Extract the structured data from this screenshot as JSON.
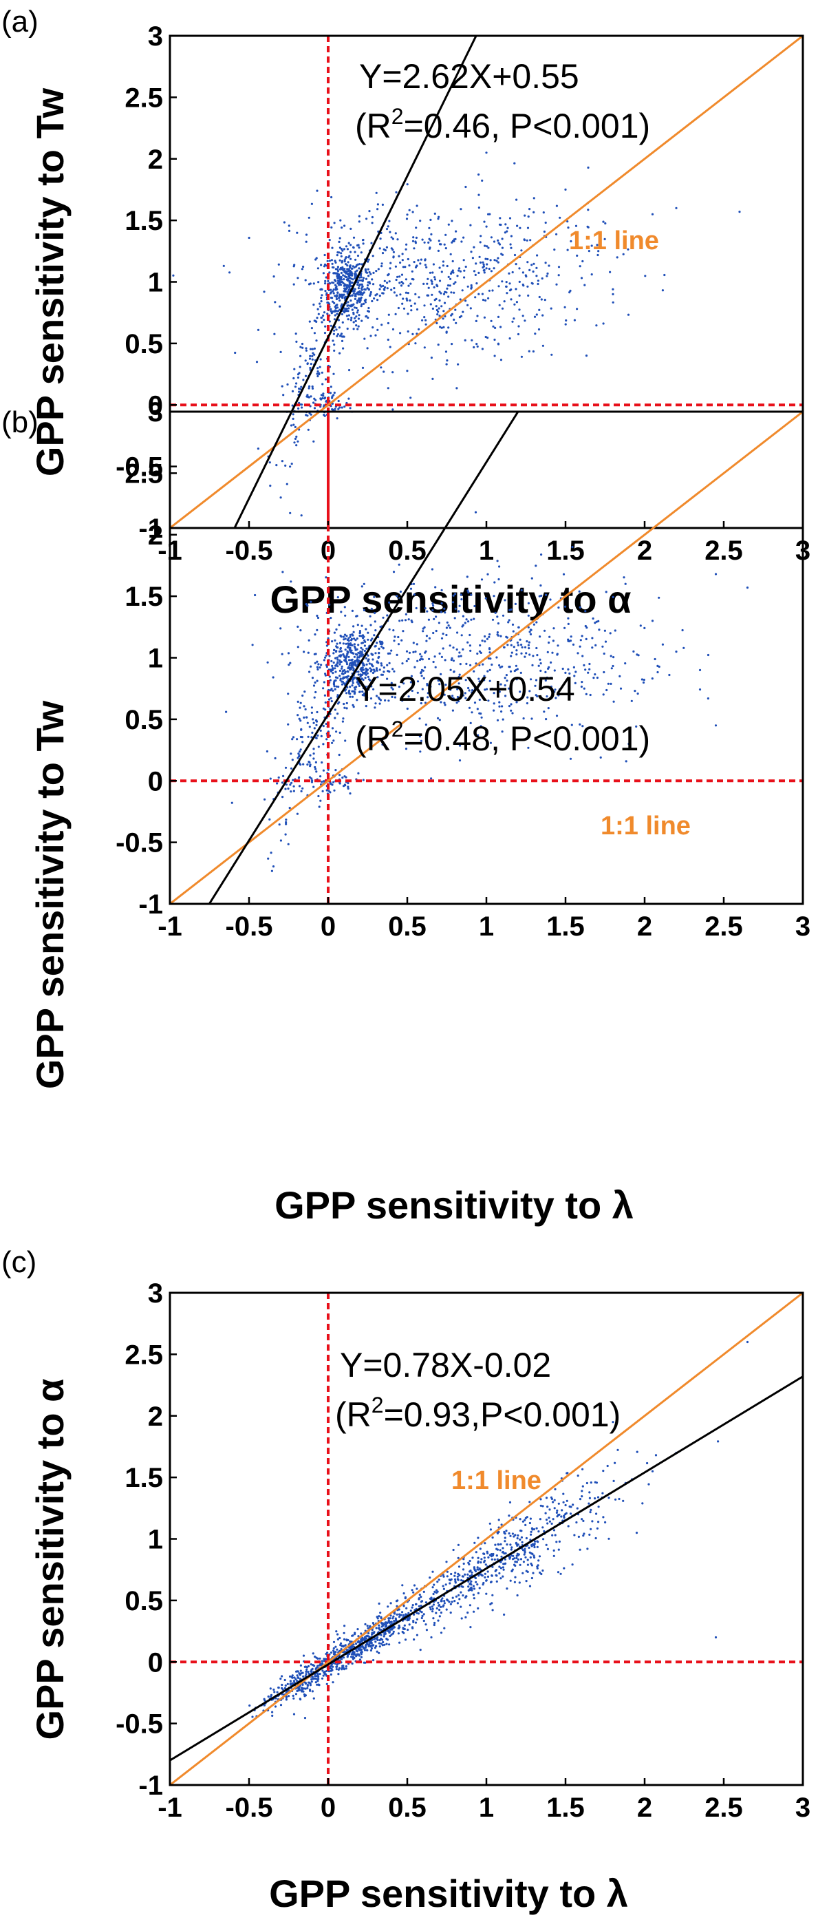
{
  "colors": {
    "points": "#1f4fb8",
    "fit_line": "#000000",
    "one_to_one": "#f08a2c",
    "zero_lines": "#e8101a",
    "axes": "#000000"
  },
  "chart_data": [
    {
      "type": "scatter",
      "panel": "(a)",
      "xlabel": "GPP sensitivity to α",
      "ylabel": "GPP sensitivity to Tw",
      "xlim": [
        -1,
        3
      ],
      "ylim": [
        -1,
        3
      ],
      "xticks": [
        "-1",
        "-0.5",
        "0",
        "0.5",
        "1",
        "1.5",
        "2",
        "2.5",
        "3"
      ],
      "yticks": [
        "-1",
        "-0.5",
        "0",
        "0.5",
        "1",
        "1.5",
        "2",
        "2.5",
        "3"
      ],
      "fit": {
        "slope": 2.62,
        "intercept": 0.55
      },
      "equation": "Y=2.62X+0.55",
      "stats_prefix": "(R",
      "stats_sup": "2",
      "stats_suffix": "=0.46, P<0.001)",
      "one_to_one_label": "1:1 line",
      "zero_lines": true,
      "clusters": [
        {
          "n": 420,
          "cx": 0.12,
          "cy": 0.95,
          "sx": 0.08,
          "sy": 0.15,
          "follow_fit": false
        },
        {
          "n": 160,
          "cx": -0.1,
          "cy": 0.3,
          "sx": 0.12,
          "sy": 0.25,
          "follow_fit": true
        },
        {
          "n": 60,
          "cx": 0.0,
          "cy": 0.0,
          "sx": 0.08,
          "sy": 0.06,
          "follow_fit": false
        },
        {
          "n": 520,
          "cx": 0.6,
          "cy": 1.0,
          "sx": 0.42,
          "sy": 0.33,
          "follow_fit": false
        },
        {
          "n": 120,
          "cx": 1.3,
          "cy": 1.15,
          "sx": 0.3,
          "sy": 0.3,
          "follow_fit": false
        }
      ],
      "outliers": [
        [
          2.6,
          1.57
        ],
        [
          1.8,
          0.9
        ],
        [
          2.2,
          1.6
        ],
        [
          1.0,
          2.05
        ],
        [
          1.5,
          1.75
        ],
        [
          -0.45,
          0.35
        ],
        [
          2.05,
          1.55
        ],
        [
          1.7,
          1.3
        ]
      ]
    },
    {
      "type": "scatter",
      "panel": "(b)",
      "xlabel": "GPP sensitivity to λ",
      "ylabel": "GPP sensitivity to Tw",
      "xlim": [
        -1,
        3
      ],
      "ylim": [
        -1,
        3
      ],
      "xticks": [
        "-1",
        "-0.5",
        "0",
        "0.5",
        "1",
        "1.5",
        "2",
        "2.5",
        "3"
      ],
      "yticks": [
        "-1",
        "-0.5",
        "0",
        "0.5",
        "1",
        "1.5",
        "2",
        "2.5",
        "3"
      ],
      "fit": {
        "slope": 2.05,
        "intercept": 0.54
      },
      "equation": "Y=2.05X+0.54",
      "stats_prefix": "(R",
      "stats_sup": "2",
      "stats_suffix": "=0.48, P<0.001)",
      "one_to_one_label": "1:1 line",
      "zero_lines": true,
      "clusters": [
        {
          "n": 420,
          "cx": 0.15,
          "cy": 0.95,
          "sx": 0.09,
          "sy": 0.15,
          "follow_fit": false
        },
        {
          "n": 160,
          "cx": -0.1,
          "cy": 0.3,
          "sx": 0.15,
          "sy": 0.25,
          "follow_fit": true
        },
        {
          "n": 60,
          "cx": 0.0,
          "cy": 0.0,
          "sx": 0.08,
          "sy": 0.06,
          "follow_fit": false
        },
        {
          "n": 520,
          "cx": 0.75,
          "cy": 1.0,
          "sx": 0.5,
          "sy": 0.33,
          "follow_fit": false
        },
        {
          "n": 120,
          "cx": 1.5,
          "cy": 1.1,
          "sx": 0.35,
          "sy": 0.3,
          "follow_fit": false
        }
      ],
      "outliers": [
        [
          2.65,
          1.57
        ],
        [
          2.45,
          1.68
        ],
        [
          2.35,
          0.9
        ],
        [
          2.05,
          1.3
        ],
        [
          2.45,
          0.45
        ],
        [
          1.9,
          0.3
        ],
        [
          2.2,
          1.05
        ],
        [
          1.85,
          0.75
        ]
      ]
    },
    {
      "type": "scatter",
      "panel": "(c)",
      "xlabel": "GPP sensitivity to λ",
      "ylabel": "GPP sensitivity to α",
      "xlim": [
        -1,
        3
      ],
      "ylim": [
        -1,
        3
      ],
      "xticks": [
        "-1",
        "-0.5",
        "0",
        "0.5",
        "1",
        "1.5",
        "2",
        "2.5",
        "3"
      ],
      "yticks": [
        "-1",
        "-0.5",
        "0",
        "0.5",
        "1",
        "1.5",
        "2",
        "2.5",
        "3"
      ],
      "fit": {
        "slope": 0.78,
        "intercept": -0.02
      },
      "equation": "Y=0.78X-0.02",
      "stats_prefix": "(R",
      "stats_sup": "2",
      "stats_suffix": "=0.93,P<0.001)",
      "one_to_one_label": "1:1 line",
      "zero_lines": true,
      "clusters": [
        {
          "n": 520,
          "cx": 0.15,
          "cy": 0.1,
          "sx": 0.22,
          "sy": 0.06,
          "follow_fit": true
        },
        {
          "n": 420,
          "cx": 0.75,
          "cy": 0.55,
          "sx": 0.4,
          "sy": 0.12,
          "follow_fit": true
        },
        {
          "n": 260,
          "cx": 1.3,
          "cy": 1.0,
          "sx": 0.3,
          "sy": 0.17,
          "follow_fit": true
        },
        {
          "n": 140,
          "cx": -0.2,
          "cy": -0.18,
          "sx": 0.12,
          "sy": 0.05,
          "follow_fit": true
        }
      ],
      "outliers": [
        [
          2.65,
          2.6
        ],
        [
          2.45,
          0.2
        ],
        [
          1.95,
          1.05
        ],
        [
          2.05,
          1.55
        ],
        [
          1.8,
          1.95
        ],
        [
          2.2,
          1.7
        ],
        [
          0.6,
          0.0
        ]
      ]
    }
  ]
}
